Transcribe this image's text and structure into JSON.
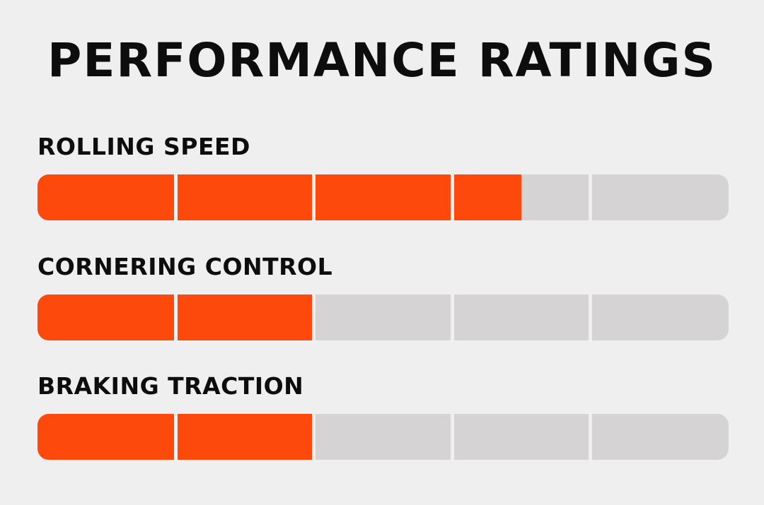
{
  "colors": {
    "filled": "#fd4a0c",
    "empty": "#d5d3d4",
    "background": "#f0efef",
    "text": "#0d0d0d"
  },
  "chart_data": {
    "type": "bar",
    "title": "PERFORMANCE RATINGS",
    "scale_max": 5,
    "segments": 5,
    "categories": [
      "ROLLING SPEED",
      "CORNERING CONTROL",
      "BRAKING TRACTION"
    ],
    "values": [
      3.5,
      2,
      2
    ]
  }
}
